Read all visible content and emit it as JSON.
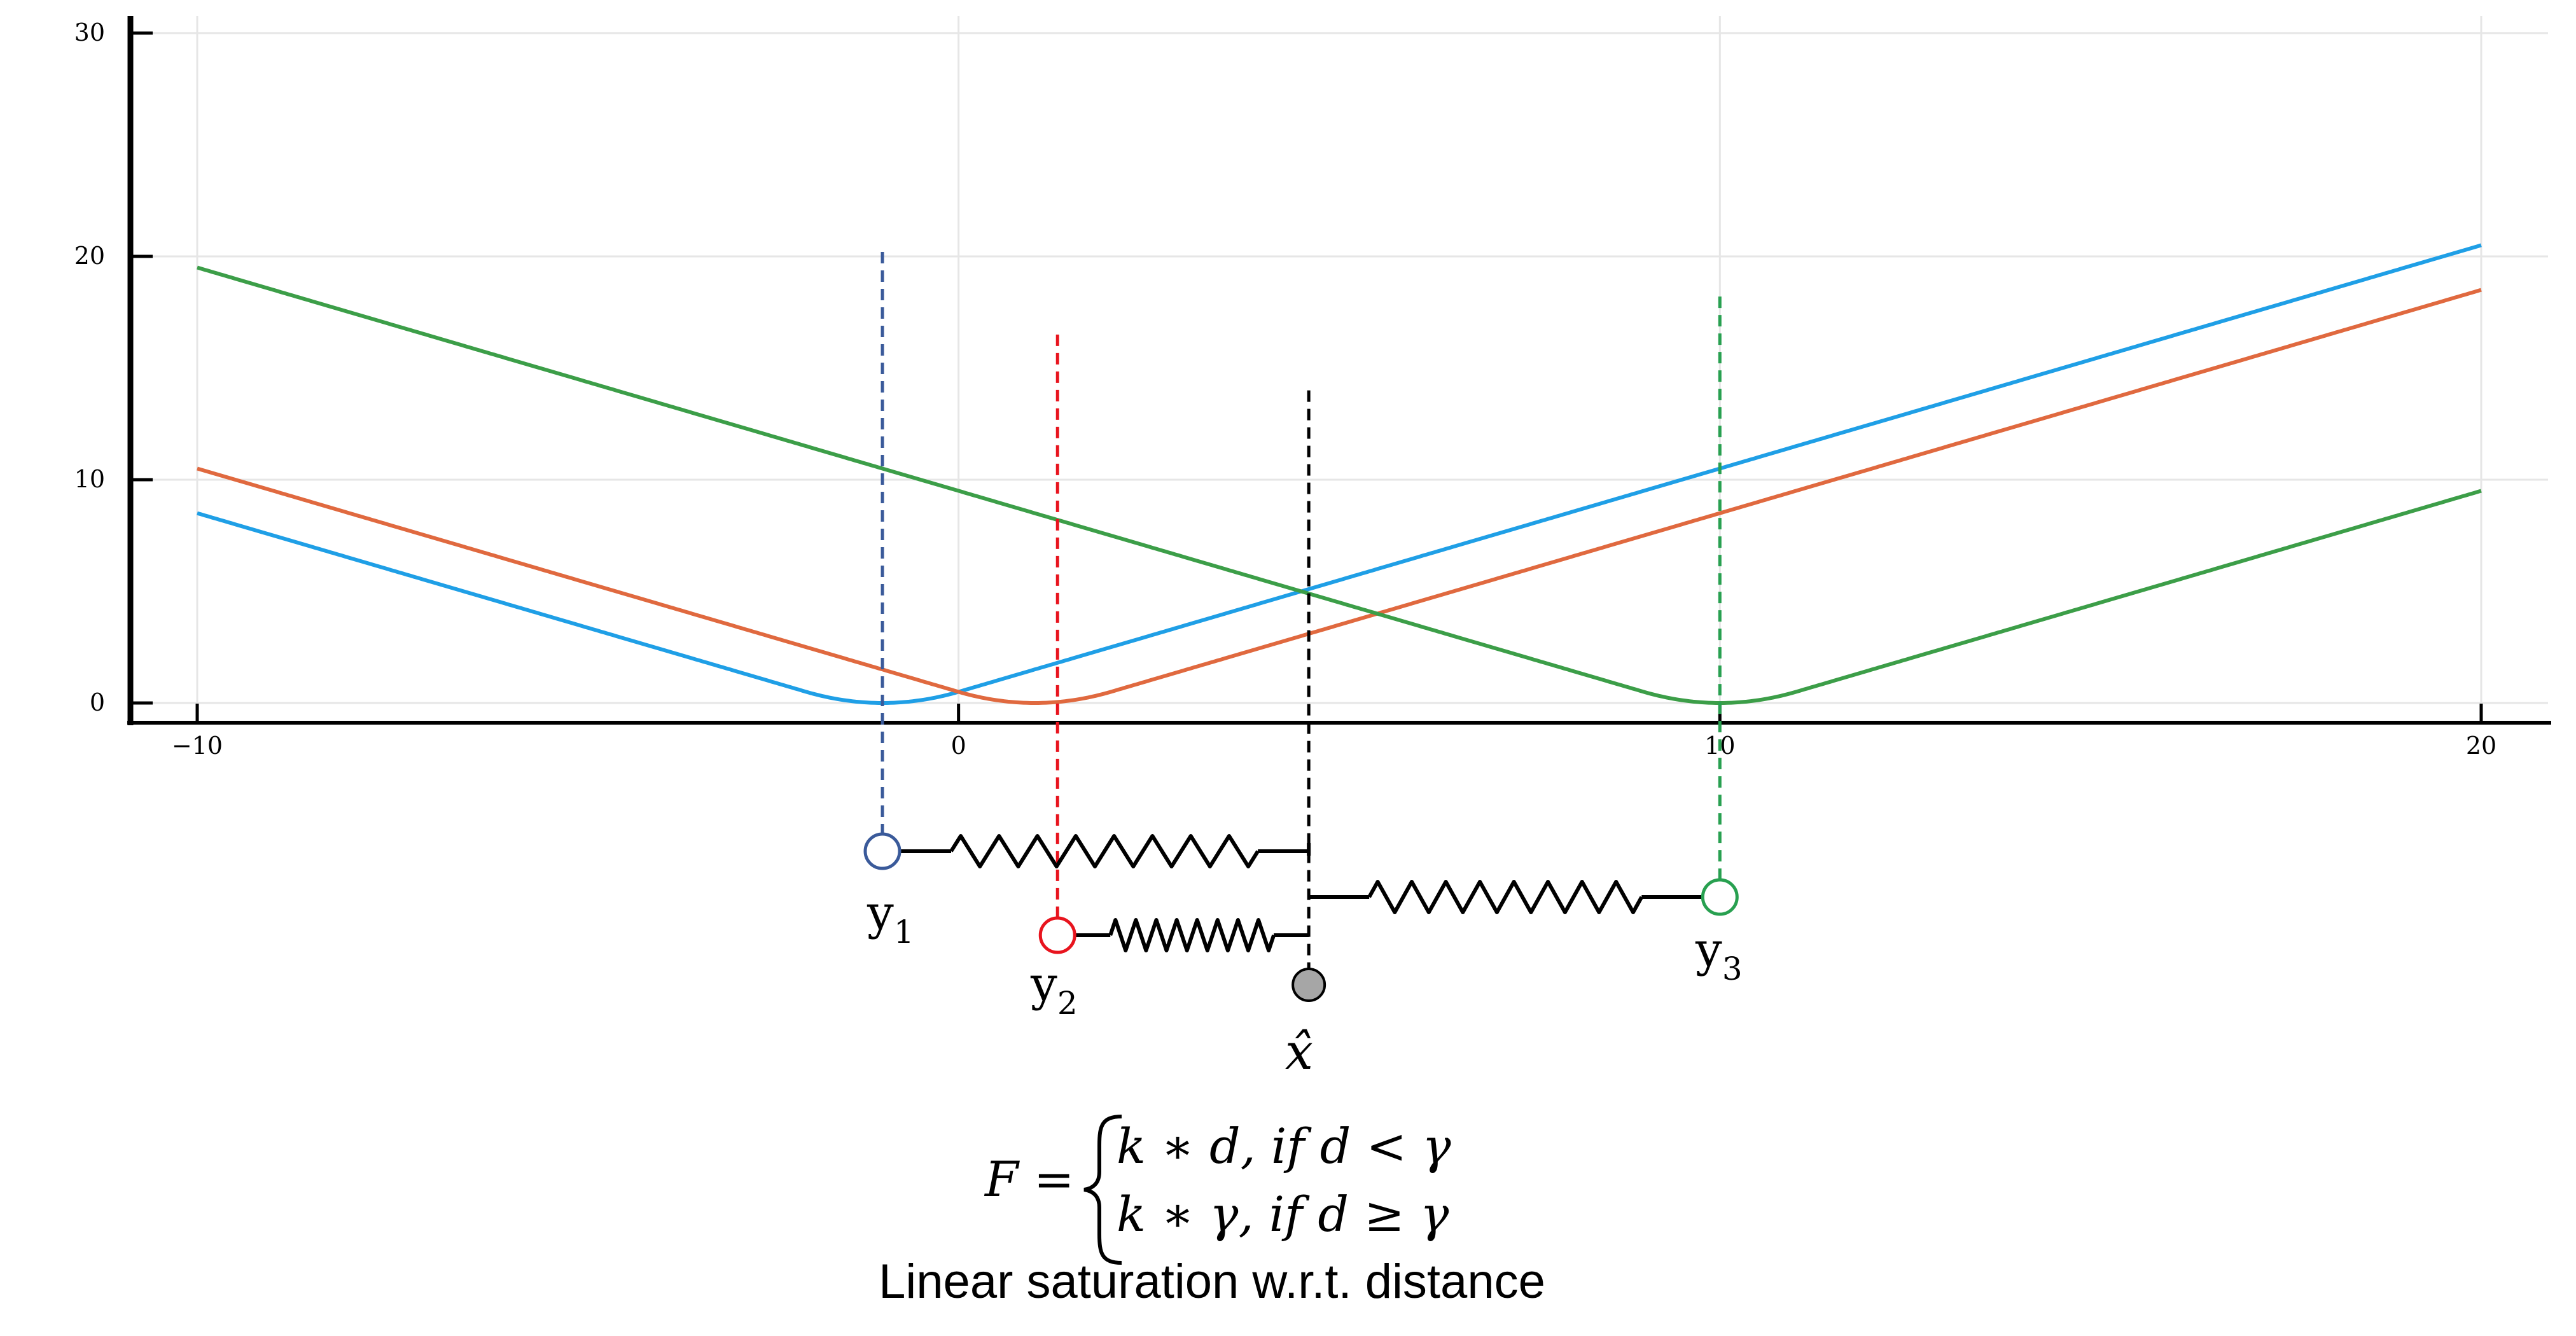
{
  "chart_data": {
    "type": "line",
    "title": "",
    "xlabel": "",
    "ylabel": "",
    "xlim": [
      -10,
      20
    ],
    "ylim": [
      0,
      30
    ],
    "x_ticks": [
      -10,
      0,
      10,
      20
    ],
    "x_tick_labels": [
      "−10",
      "0",
      "10",
      "20"
    ],
    "y_ticks": [
      0,
      10,
      20,
      30
    ],
    "y_tick_labels": [
      "0",
      "10",
      "20",
      "30"
    ],
    "grid": true,
    "legend": "none",
    "colors": {
      "blue": "#1f9fe6",
      "orange": "#e0693f",
      "green": "#3c9e48",
      "axis": "#000000",
      "grid": "#e6e6e6"
    },
    "series": [
      {
        "color": "#1f9fe6",
        "center": -1,
        "x": [
          -10,
          -2,
          -1,
          0,
          20
        ],
        "y": [
          8.5,
          0.5,
          0,
          0.5,
          20.5
        ]
      },
      {
        "color": "#e0693f",
        "center": 1,
        "x": [
          -10,
          0,
          1,
          2,
          20
        ],
        "y": [
          10.5,
          0.5,
          0,
          0.5,
          18.5
        ]
      },
      {
        "color": "#3c9e48",
        "center": 10,
        "x": [
          -10,
          9,
          10,
          11,
          20
        ],
        "y": [
          19.5,
          0.5,
          0,
          0.5,
          9.5
        ]
      }
    ],
    "markers": [
      {
        "id": "y1",
        "x": -1,
        "y_top": 20.2,
        "color": "#3a5a9a"
      },
      {
        "id": "y2",
        "x": 1.3,
        "y_top": 16.5,
        "color": "#e8141e"
      },
      {
        "id": "xhat",
        "x": 4.6,
        "y_top": 14.0,
        "color": "#000000"
      },
      {
        "id": "y3",
        "x": 10,
        "y_top": 18.2,
        "color": "#28a050"
      }
    ]
  },
  "diagram": {
    "labels": {
      "y1": "y",
      "y1_sub": "1",
      "y2": "y",
      "y2_sub": "2",
      "y3": "y",
      "y3_sub": "3",
      "xhat": "x̂"
    },
    "formula": {
      "lhs": "F =",
      "case1": "k ∗ d, if  d < γ",
      "case2": "k ∗ γ, if  d ≥ γ"
    },
    "caption": "Linear saturation w.r.t. distance",
    "node_colors": {
      "y1": "#3a5a9a",
      "y2": "#e8141e",
      "y3": "#28a050",
      "xhat_fill": "#a6a6a6"
    }
  }
}
